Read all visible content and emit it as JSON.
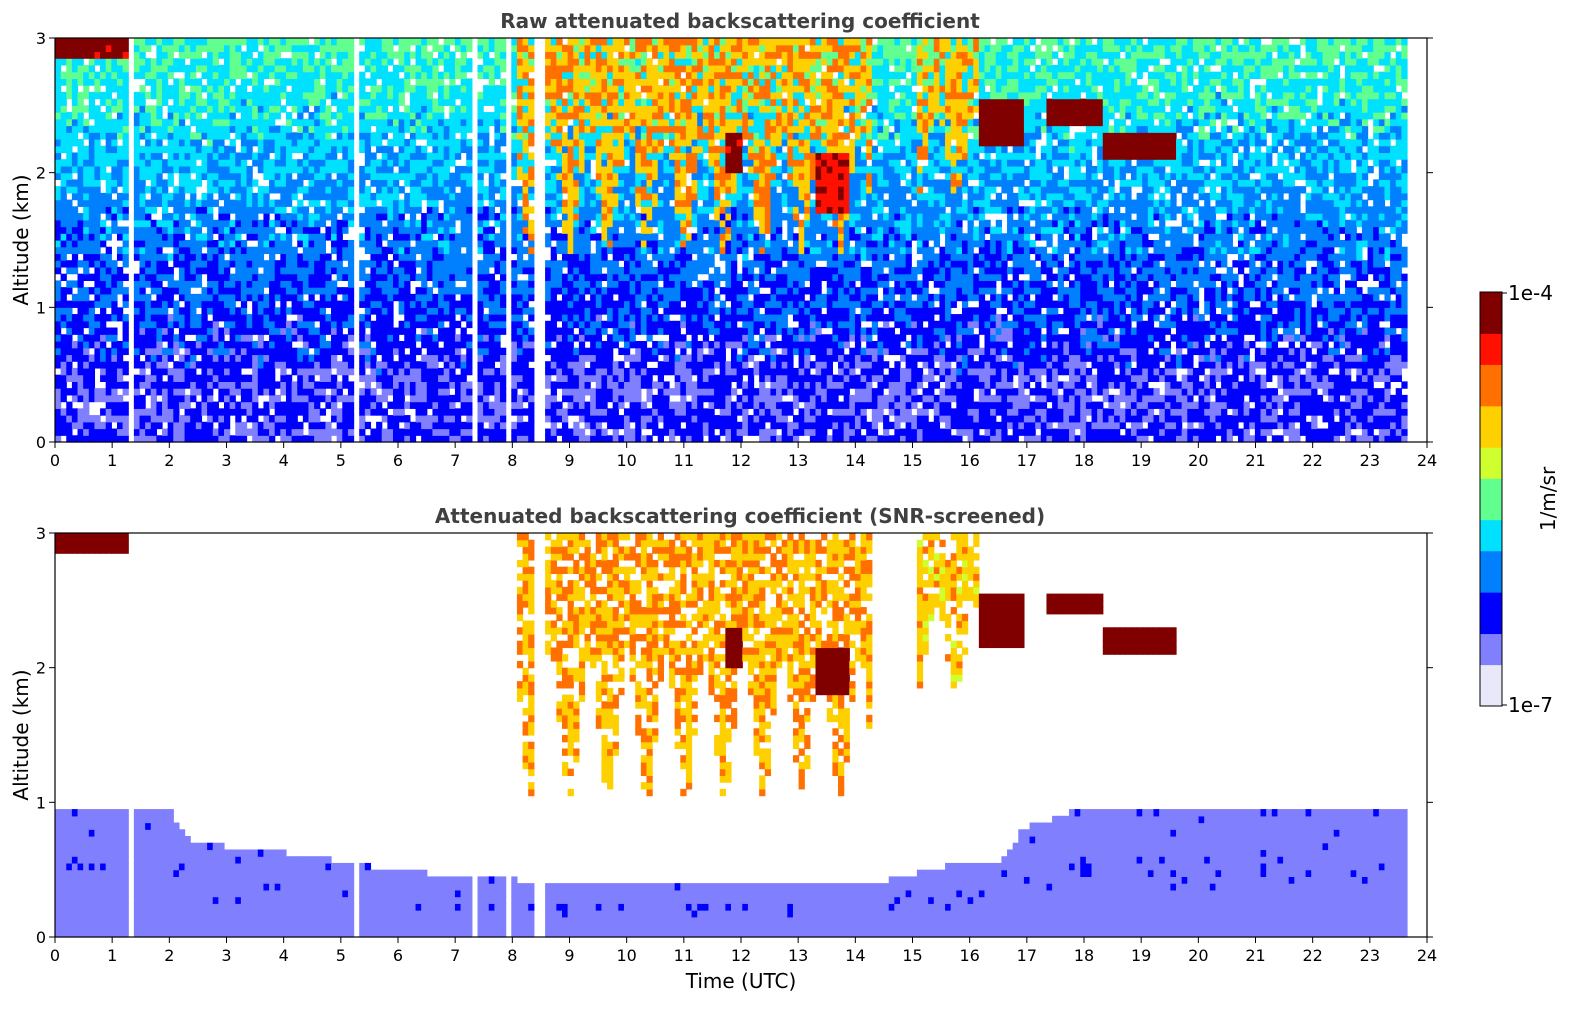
{
  "chart_data": [
    {
      "type": "heatmap",
      "title": "Raw attenuated backscattering coefficient",
      "xlabel": "",
      "ylabel": "Altitude (km)",
      "xlim": [
        0,
        24
      ],
      "ylim": [
        0,
        3
      ],
      "x_ticks": [
        "0",
        "1",
        "2",
        "3",
        "4",
        "5",
        "6",
        "7",
        "8",
        "9",
        "10",
        "11",
        "12",
        "13",
        "14",
        "15",
        "16",
        "17",
        "18",
        "19",
        "20",
        "21",
        "22",
        "23",
        "24"
      ],
      "y_ticks": [
        "0",
        "1",
        "2",
        "3"
      ],
      "data_end_time": 23.65,
      "noise_screened": false,
      "features": [
        {
          "kind": "cloud",
          "t0": 0.0,
          "t1": 1.3,
          "z0": 2.85,
          "z1": 3.0,
          "level": 0.95
        },
        {
          "kind": "precip-streaks",
          "t0": 8.0,
          "t1": 14.2,
          "z0": 1.3,
          "z1": 3.0,
          "level": 0.72
        },
        {
          "kind": "precip-streaks",
          "t0": 15.0,
          "t1": 16.1,
          "z0": 1.75,
          "z1": 3.0,
          "level": 0.7
        },
        {
          "kind": "cloud",
          "t0": 11.7,
          "t1": 12.0,
          "z0": 2.0,
          "z1": 2.3,
          "level": 0.95
        },
        {
          "kind": "cloud",
          "t0": 13.3,
          "t1": 13.8,
          "z0": 1.7,
          "z1": 2.1,
          "level": 0.9
        },
        {
          "kind": "cloud",
          "t0": 16.1,
          "t1": 16.9,
          "z0": 2.2,
          "z1": 2.55,
          "level": 0.97
        },
        {
          "kind": "cloud",
          "t0": 17.3,
          "t1": 18.3,
          "z0": 2.35,
          "z1": 2.55,
          "level": 0.97
        },
        {
          "kind": "cloud",
          "t0": 18.3,
          "t1": 19.6,
          "z0": 2.1,
          "z1": 2.25,
          "level": 0.97
        }
      ],
      "gaps": [
        1.3,
        5.2,
        7.25,
        7.9,
        8.4,
        8.5
      ]
    },
    {
      "type": "heatmap",
      "title": "Attenuated backscattering coefficient (SNR-screened)",
      "xlabel": "Time (UTC)",
      "ylabel": "Altitude (km)",
      "xlim": [
        0,
        24
      ],
      "ylim": [
        0,
        3
      ],
      "x_ticks": [
        "0",
        "1",
        "2",
        "3",
        "4",
        "5",
        "6",
        "7",
        "8",
        "9",
        "10",
        "11",
        "12",
        "13",
        "14",
        "15",
        "16",
        "17",
        "18",
        "19",
        "20",
        "21",
        "22",
        "23",
        "24"
      ],
      "y_ticks": [
        "0",
        "1",
        "2",
        "3"
      ],
      "data_end_time": 23.65,
      "noise_screened": true,
      "boundary_layer_top_km": [
        [
          0,
          0.95
        ],
        [
          2.0,
          0.9
        ],
        [
          2.3,
          0.68
        ],
        [
          4.0,
          0.6
        ],
        [
          5.5,
          0.5
        ],
        [
          7.0,
          0.42
        ],
        [
          9.0,
          0.38
        ],
        [
          11.0,
          0.37
        ],
        [
          13.0,
          0.36
        ],
        [
          14.5,
          0.4
        ],
        [
          15.5,
          0.5
        ],
        [
          16.5,
          0.55
        ],
        [
          16.9,
          0.78
        ],
        [
          18.0,
          0.95
        ],
        [
          20.0,
          0.95
        ],
        [
          22.0,
          0.95
        ],
        [
          23.65,
          0.9
        ]
      ],
      "features": [
        {
          "kind": "cloud",
          "t0": 0.0,
          "t1": 1.2,
          "z0": 2.85,
          "z1": 3.0,
          "level": 0.98
        },
        {
          "kind": "precip-streaks",
          "t0": 8.0,
          "t1": 14.2,
          "z0": 0.9,
          "z1": 3.0,
          "level": 0.72
        },
        {
          "kind": "precip-streaks",
          "t0": 15.0,
          "t1": 16.1,
          "z0": 1.75,
          "z1": 3.0,
          "level": 0.68
        },
        {
          "kind": "cloud",
          "t0": 11.7,
          "t1": 12.0,
          "z0": 2.0,
          "z1": 2.3,
          "level": 0.99
        },
        {
          "kind": "cloud",
          "t0": 13.3,
          "t1": 13.8,
          "z0": 1.8,
          "z1": 2.1,
          "level": 0.99
        },
        {
          "kind": "cloud",
          "t0": 16.1,
          "t1": 16.9,
          "z0": 2.15,
          "z1": 2.55,
          "level": 0.99
        },
        {
          "kind": "cloud",
          "t0": 17.3,
          "t1": 18.3,
          "z0": 2.4,
          "z1": 2.55,
          "level": 0.99
        },
        {
          "kind": "cloud",
          "t0": 18.3,
          "t1": 19.6,
          "z0": 2.1,
          "z1": 2.25,
          "level": 0.99
        }
      ],
      "gaps": [
        1.3,
        5.2,
        7.25,
        7.9,
        8.4,
        8.5
      ]
    }
  ],
  "colorbar": {
    "label": "1/m/sr",
    "max_label": "1e-4",
    "min_label": "1e-7",
    "colormap": "jet",
    "colors": [
      "#e8e8f8",
      "#8080ff",
      "#0000ff",
      "#0080ff",
      "#00e0ff",
      "#60ff90",
      "#d0ff30",
      "#ffd000",
      "#ff7000",
      "#ff1000",
      "#800000"
    ]
  }
}
